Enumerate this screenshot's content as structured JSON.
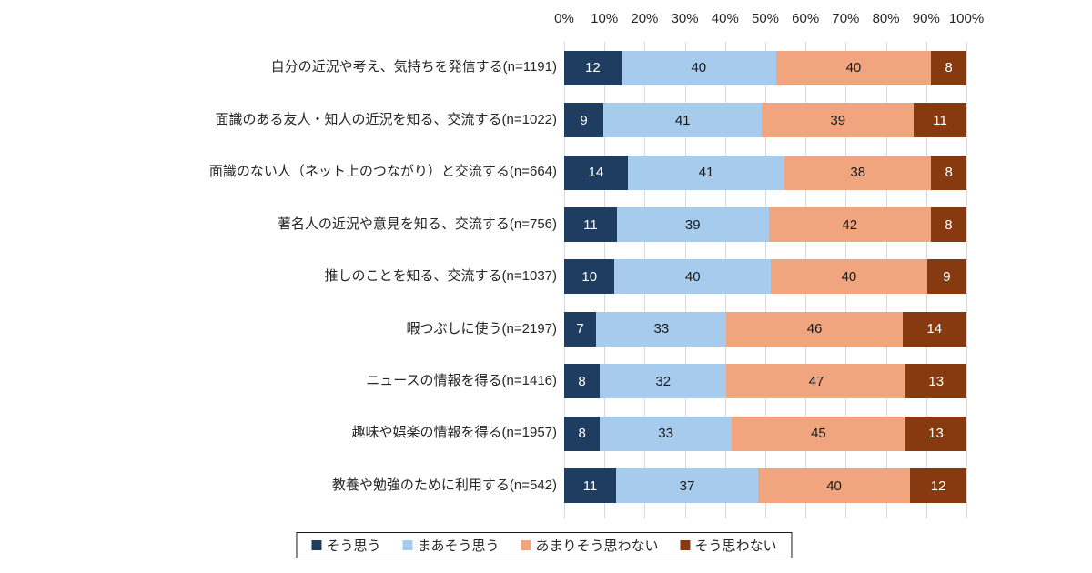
{
  "page": {
    "background_color": "#FFFFFF"
  },
  "chart_data": {
    "type": "bar",
    "variant": "horizontal-stacked-100",
    "title": "",
    "xlabel": "",
    "ylabel": "",
    "x_axis": {
      "ticks": [
        "0%",
        "10%",
        "20%",
        "30%",
        "40%",
        "50%",
        "60%",
        "70%",
        "80%",
        "90%",
        "100%"
      ],
      "min": 0,
      "max": 100,
      "position": "top"
    },
    "grid": {
      "vertical": true,
      "color": "#D9D9D9"
    },
    "series": [
      {
        "name": "そう思う",
        "color": "#1F3D60",
        "label_color": "#FFFFFF"
      },
      {
        "name": "まあそう思う",
        "color": "#A7CBEC",
        "label_color": "#1A1A1A"
      },
      {
        "name": "あまりそう思わない",
        "color": "#F1A57E",
        "label_color": "#1A1A1A"
      },
      {
        "name": "そう思わない",
        "color": "#873A10",
        "label_color": "#FFFFFF"
      }
    ],
    "categories": [
      "自分の近況や考え、気持ちを発信する(n=1191)",
      "面識のある友人・知人の近況を知る、交流する(n=1022)",
      "面識のない人（ネット上のつながり）と交流する(n=664)",
      "著名人の近況や意見を知る、交流する(n=756)",
      "推しのことを知る、交流する(n=1037)",
      "暇つぶしに使う(n=2197)",
      "ニュースの情報を得る(n=1416)",
      "趣味や娯楽の情報を得る(n=1957)",
      "教養や勉強のために利用する(n=542)"
    ],
    "rows": [
      {
        "label": "自分の近況や考え、気持ちを発信する(n=1191)",
        "values": [
          12,
          40,
          40,
          8
        ]
      },
      {
        "label": "面識のある友人・知人の近況を知る、交流する(n=1022)",
        "values": [
          9,
          41,
          39,
          11
        ]
      },
      {
        "label": "面識のない人（ネット上のつながり）と交流する(n=664)",
        "values": [
          14,
          41,
          38,
          8
        ]
      },
      {
        "label": "著名人の近況や意見を知る、交流する(n=756)",
        "values": [
          11,
          39,
          42,
          8
        ]
      },
      {
        "label": "推しのことを知る、交流する(n=1037)",
        "values": [
          10,
          40,
          40,
          9
        ]
      },
      {
        "label": "暇つぶしに使う(n=2197)",
        "values": [
          7,
          33,
          46,
          14
        ]
      },
      {
        "label": "ニュースの情報を得る(n=1416)",
        "values": [
          8,
          32,
          47,
          13
        ]
      },
      {
        "label": "趣味や娯楽の情報を得る(n=1957)",
        "values": [
          8,
          33,
          45,
          13
        ]
      },
      {
        "label": "教養や勉強のために利用する(n=542)",
        "values": [
          11,
          37,
          40,
          12
        ]
      }
    ],
    "legend": {
      "position": "bottom",
      "items": [
        "そう思う",
        "まあそう思う",
        "あまりそう思わない",
        "そう思わない"
      ]
    }
  }
}
